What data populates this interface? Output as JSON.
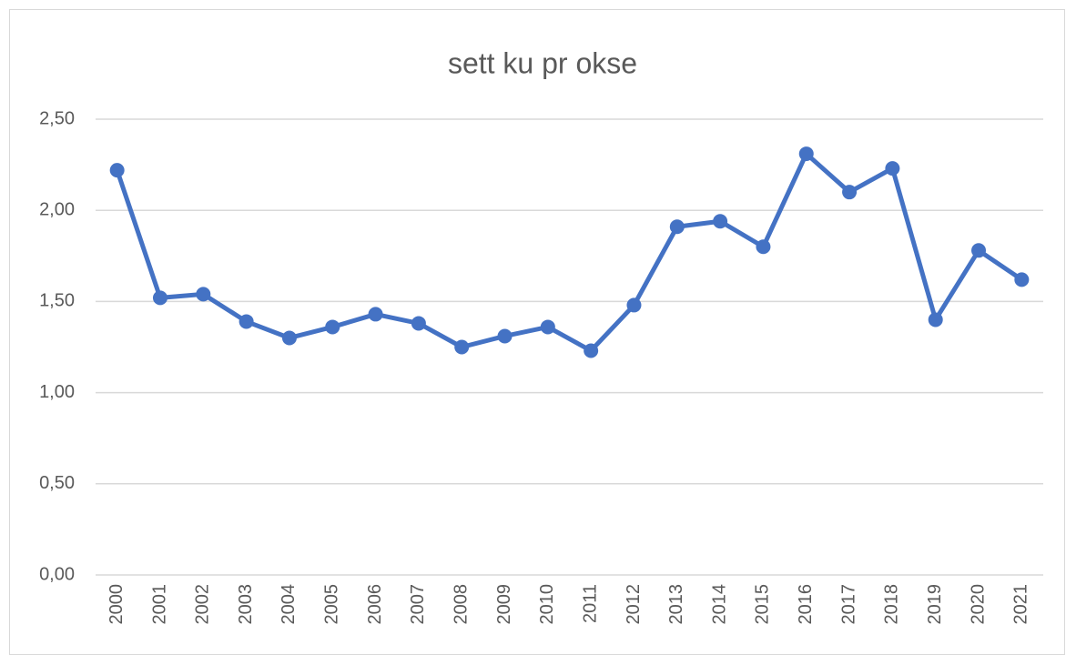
{
  "chart_data": {
    "type": "line",
    "title": "sett ku pr okse",
    "categories": [
      "2000",
      "2001",
      "2002",
      "2003",
      "2004",
      "2005",
      "2006",
      "2007",
      "2008",
      "2009",
      "2010",
      "2011",
      "2012",
      "2013",
      "2014",
      "2015",
      "2016",
      "2017",
      "2018",
      "2019",
      "2020",
      "2021"
    ],
    "series": [
      {
        "name": "sett ku pr okse",
        "color": "#4472c4",
        "values": [
          2.22,
          1.52,
          1.54,
          1.39,
          1.3,
          1.36,
          1.43,
          1.38,
          1.25,
          1.31,
          1.36,
          1.23,
          1.48,
          1.91,
          1.94,
          1.8,
          2.31,
          2.1,
          2.23,
          1.4,
          1.78,
          1.62
        ]
      }
    ],
    "ylim": [
      0,
      2.5
    ],
    "yticks": [
      {
        "value": 0,
        "label": "0,00"
      },
      {
        "value": 0.5,
        "label": "0,50"
      },
      {
        "value": 1,
        "label": "1,00"
      },
      {
        "value": 1.5,
        "label": "1,50"
      },
      {
        "value": 2,
        "label": "2,00"
      },
      {
        "value": 2.5,
        "label": "2,50"
      }
    ],
    "grid": true,
    "legend": false
  }
}
